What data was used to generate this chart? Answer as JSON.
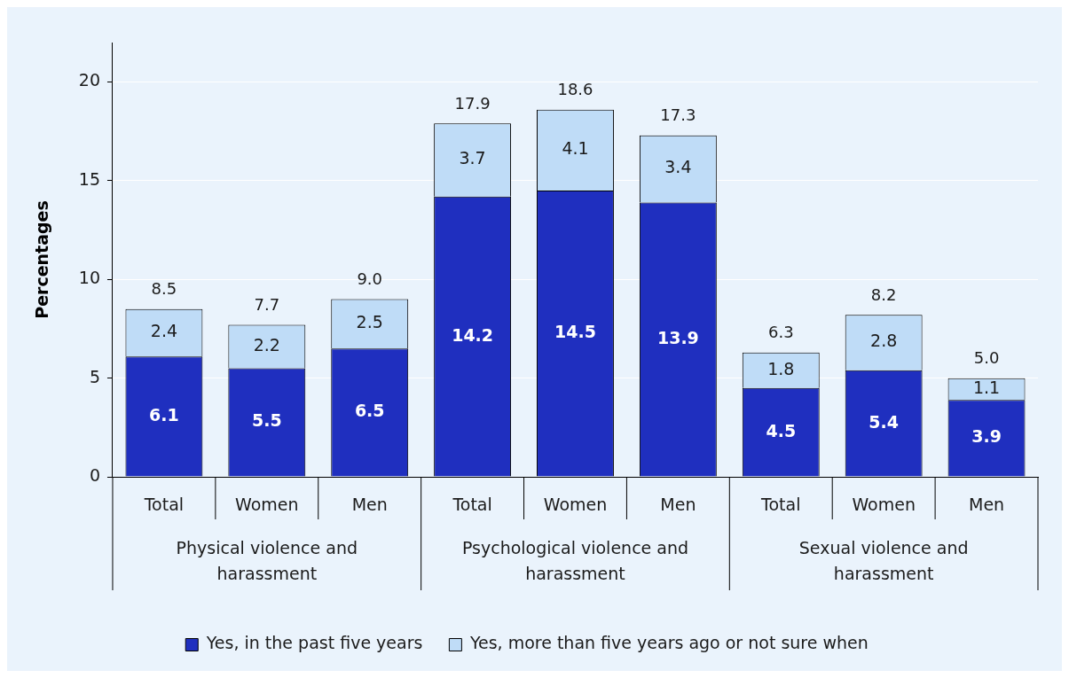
{
  "chart_data": {
    "type": "bar",
    "ylabel": "Percentages",
    "stacked": true,
    "categories": [
      "Total",
      "Women",
      "Men",
      "Total",
      "Women",
      "Men",
      "Total",
      "Women",
      "Men"
    ],
    "series": [
      {
        "name": "Yes, in the past five years",
        "color": "#1f2fbf",
        "values": [
          6.1,
          5.5,
          6.5,
          14.2,
          14.5,
          13.9,
          4.5,
          5.4,
          3.9
        ]
      },
      {
        "name": "Yes, more than five years ago or not sure when",
        "color": "#bfdcf7",
        "values": [
          2.4,
          2.2,
          2.5,
          3.7,
          4.1,
          3.4,
          1.8,
          2.8,
          1.1
        ]
      }
    ],
    "totals": [
      "8.5",
      "7.7",
      "9.0",
      "17.9",
      "18.6",
      "17.3",
      "6.3",
      "8.2",
      "5.0"
    ],
    "annotations": [
      "Physical violence and harassment",
      "Psychological violence and harassment",
      "Sexual violence and harassment"
    ],
    "ylim": [
      0,
      22
    ],
    "yticks": [
      0,
      5,
      10,
      15,
      20
    ],
    "grid": "y",
    "legend": "bottom",
    "data_labels": true
  }
}
